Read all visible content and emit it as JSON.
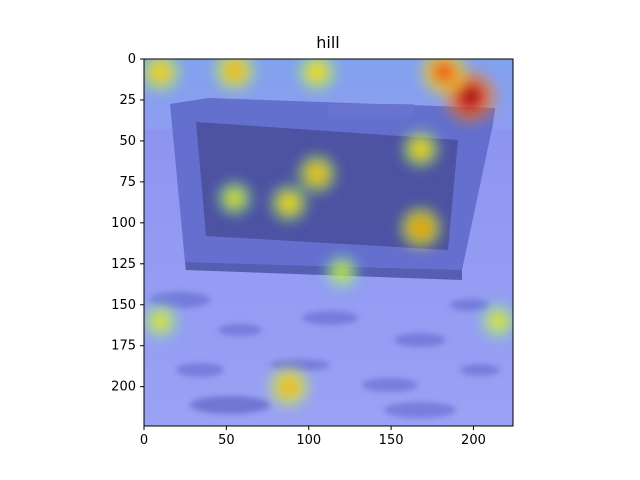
{
  "chart_data": {
    "type": "heatmap",
    "title": "hill",
    "xlabel": "",
    "ylabel": "",
    "xlim": [
      0,
      224
    ],
    "ylim": [
      224,
      0
    ],
    "xticks": [
      0,
      50,
      100,
      150,
      200
    ],
    "yticks": [
      0,
      25,
      50,
      75,
      100,
      125,
      150,
      175,
      200
    ],
    "xtick_labels": [
      "0",
      "50",
      "100",
      "150",
      "200"
    ],
    "ytick_labels": [
      "0",
      "25",
      "50",
      "75",
      "100",
      "125",
      "150",
      "175",
      "200"
    ],
    "grid": false,
    "colormap": "jet",
    "background": "photo of an old CRT television set on a sidewalk, overlaid with a class-activation heatmap",
    "hotspots": [
      {
        "x": 198,
        "y": 23,
        "intensity": 1.0
      },
      {
        "x": 182,
        "y": 8,
        "intensity": 0.75
      },
      {
        "x": 55,
        "y": 7,
        "intensity": 0.55
      },
      {
        "x": 10,
        "y": 8,
        "intensity": 0.5
      },
      {
        "x": 105,
        "y": 8,
        "intensity": 0.45
      },
      {
        "x": 168,
        "y": 103,
        "intensity": 0.6
      },
      {
        "x": 168,
        "y": 55,
        "intensity": 0.45
      },
      {
        "x": 105,
        "y": 70,
        "intensity": 0.5
      },
      {
        "x": 88,
        "y": 88,
        "intensity": 0.45
      },
      {
        "x": 55,
        "y": 85,
        "intensity": 0.35
      },
      {
        "x": 88,
        "y": 200,
        "intensity": 0.55
      },
      {
        "x": 10,
        "y": 160,
        "intensity": 0.35
      },
      {
        "x": 215,
        "y": 160,
        "intensity": 0.35
      },
      {
        "x": 120,
        "y": 130,
        "intensity": 0.3
      }
    ]
  }
}
